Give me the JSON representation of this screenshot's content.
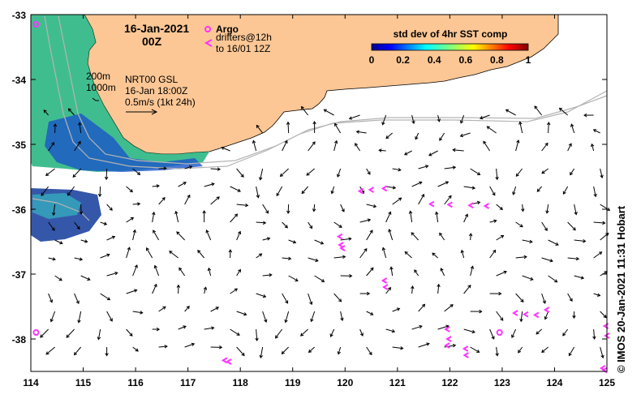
{
  "title": {
    "date": "16-Jan-2021",
    "time": "00Z"
  },
  "legend": {
    "argo_label": "Argo",
    "drifters_line1": "drifters@12h",
    "drifters_line2": "to 16/01 12Z",
    "colorbar_title": "std dev of 4hr SST comp",
    "colorbar_ticks": [
      "0",
      "0.2",
      "0.4",
      "0.6",
      "0.8",
      "1"
    ],
    "argo_color": "#ff33ff",
    "drifter_color": "#ff33ff"
  },
  "annotations": {
    "isobath_200": "200m",
    "isobath_1000": "1000m",
    "product": "NRT00 GSL",
    "product_time": "16-Jan 18:00Z",
    "scale_label": "0.5m/s (1kt 24h)"
  },
  "credit": "© IMOS 20-Jan-2021 11:31 Hobart",
  "axes": {
    "x_ticks": [
      "114",
      "115",
      "116",
      "117",
      "118",
      "119",
      "120",
      "121",
      "122",
      "123",
      "124",
      "125"
    ],
    "y_ticks": [
      "-33",
      "-34",
      "-35",
      "-36",
      "-37",
      "-38"
    ],
    "x_range": [
      114,
      125
    ],
    "y_range": [
      -38.5,
      -33
    ]
  },
  "colors": {
    "land": "#fcc795",
    "sea": "#ffffff",
    "isobath": "#b4b4b4"
  },
  "features": {
    "argo_floats": [
      [
        114.1,
        -33.15
      ],
      [
        114.1,
        -37.9
      ],
      [
        122.95,
        -37.9
      ]
    ],
    "drifter_tracks": [
      [
        [
          120.3,
          -35.72
        ],
        [
          120.5,
          -35.7
        ],
        [
          120.75,
          -35.68
        ]
      ],
      [
        [
          121.65,
          -35.92
        ],
        [
          122.0,
          -35.93
        ],
        [
          122.4,
          -35.94
        ],
        [
          122.7,
          -35.95
        ]
      ],
      [
        [
          119.9,
          -36.42
        ],
        [
          119.92,
          -36.55
        ],
        [
          119.95,
          -36.6
        ]
      ],
      [
        [
          120.75,
          -37.1
        ],
        [
          120.77,
          -37.2
        ]
      ],
      [
        [
          121.95,
          -37.85
        ],
        [
          121.98,
          -38.0
        ],
        [
          121.95,
          -38.1
        ]
      ],
      [
        [
          122.3,
          -38.15
        ],
        [
          122.31,
          -38.25
        ]
      ],
      [
        [
          123.25,
          -37.6
        ],
        [
          123.45,
          -37.62
        ],
        [
          123.65,
          -37.63
        ],
        [
          123.85,
          -37.55
        ]
      ],
      [
        [
          117.7,
          -38.33
        ],
        [
          117.78,
          -38.35
        ]
      ],
      [
        [
          124.98,
          -37.8
        ],
        [
          125.0,
          -37.95
        ]
      ],
      [
        [
          124.92,
          -38.45
        ],
        [
          124.96,
          -38.48
        ]
      ]
    ]
  }
}
